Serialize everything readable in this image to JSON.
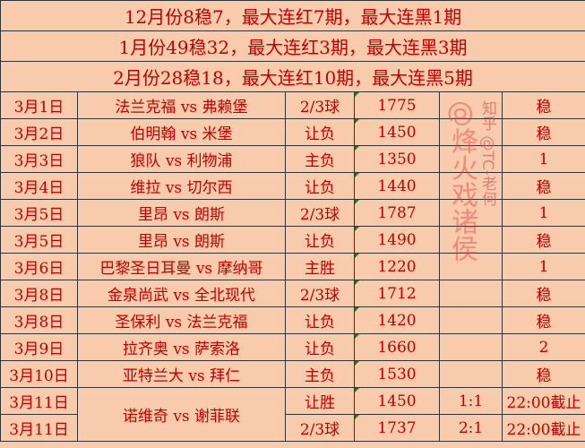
{
  "watermark": "@烽火戏诸侯",
  "watermark2": "知乎 @TC-老何",
  "summary": [
    "12月份8稳7，最大连红7期，最大连黑1期",
    "1月份49稳32，最大连红3期，最大连黑3期",
    "2月份28稳18，最大连红10期，最大连黑5期"
  ],
  "rows": [
    [
      "3月1日",
      "法兰克福 vs 弗赖堡",
      "2/3球",
      "1775",
      "",
      "稳"
    ],
    [
      "3月2日",
      "伯明翰 vs 米堡",
      "让负",
      "1450",
      "",
      "稳"
    ],
    [
      "3月3日",
      "狼队 vs 利物浦",
      "主负",
      "1350",
      "",
      "1"
    ],
    [
      "3月4日",
      "维拉 vs 切尔西",
      "让负",
      "1440",
      "",
      "稳"
    ],
    [
      "3月5日",
      "里昂 vs 朗斯",
      "2/3球",
      "1787",
      "",
      "1"
    ],
    [
      "3月5日",
      "里昂 vs 朗斯",
      "让负",
      "1490",
      "",
      "稳"
    ],
    [
      "3月6日",
      "巴黎圣日耳曼 vs 摩纳哥",
      "主胜",
      "1220",
      "",
      "1"
    ],
    [
      "3月8日",
      "金泉尚武 vs 全北现代",
      "2/3球",
      "1712",
      "",
      "稳"
    ],
    [
      "3月8日",
      "圣保利 vs 法兰克福",
      "让负",
      "1420",
      "",
      "稳"
    ],
    [
      "3月9日",
      "拉齐奥 vs 萨索洛",
      "让负",
      "1660",
      "",
      "2"
    ],
    [
      "3月10日",
      "亚特兰大 vs 拜仁",
      "主负",
      "1530",
      "",
      "稳"
    ]
  ],
  "last": {
    "date1": "3月11日",
    "date2": "3月11日",
    "match": "诺维奇 vs 谢菲联",
    "pick1": "让胜",
    "odds1": "1450",
    "score1": "1:1",
    "status1": "22:00截止",
    "pick2": "2/3球",
    "odds2": "1737",
    "score2": "2:1",
    "status2": "22:00截止"
  }
}
